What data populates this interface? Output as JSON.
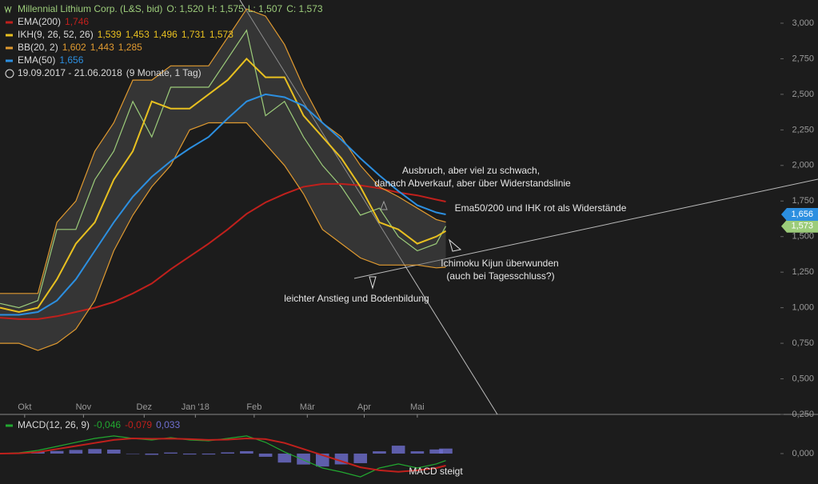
{
  "chart_data": [
    {
      "type": "line",
      "title": "Millennial Lithium Corp. (L&S, bid)",
      "ohlc": [
        "O: 1,520",
        "H: 1,575",
        "L: 1,507",
        "C: 1,573"
      ],
      "date_range": "19.09.2017 - 21.06.2018",
      "period": "(9 Monate, 1 Tag)",
      "x": [
        0,
        10,
        20,
        30,
        40,
        50,
        60,
        70,
        80,
        90,
        100,
        110,
        120,
        130,
        140,
        150,
        160,
        170,
        180,
        190,
        200,
        210,
        220,
        230,
        235
      ],
      "xlim": [
        0,
        411
      ],
      "xticks": [
        {
          "value": 13,
          "label": "Okt"
        },
        {
          "value": 44,
          "label": "Nov"
        },
        {
          "value": 76,
          "label": "Dez"
        },
        {
          "value": 103,
          "label": "Jan '18"
        },
        {
          "value": 134,
          "label": "Feb"
        },
        {
          "value": 162,
          "label": "Mär"
        },
        {
          "value": 192,
          "label": "Apr"
        },
        {
          "value": 220,
          "label": "Mai"
        }
      ],
      "ylim": [
        0.25,
        3.163
      ],
      "yticks": [
        {
          "value": 3,
          "label": "3,000"
        },
        {
          "value": 2.75,
          "label": "2,750"
        },
        {
          "value": 2.5,
          "label": "2,500"
        },
        {
          "value": 2.25,
          "label": "2,250"
        },
        {
          "value": 2,
          "label": "2,000"
        },
        {
          "value": 1.75,
          "label": "1,750"
        },
        {
          "value": 1.5,
          "label": "1,500"
        },
        {
          "value": 1.25,
          "label": "1,250"
        },
        {
          "value": 1,
          "label": "1,000"
        },
        {
          "value": 0.75,
          "label": "0,750"
        },
        {
          "value": 0.5,
          "label": "0,500"
        },
        {
          "value": 0.25,
          "label": "0,250"
        }
      ],
      "series": [
        {
          "color": "#9ccc7a",
          "last_label": "1,573",
          "values": [
            1.03,
            1.0,
            1.05,
            1.55,
            1.55,
            1.9,
            2.1,
            2.45,
            2.2,
            2.55,
            2.55,
            2.55,
            2.75,
            2.95,
            2.35,
            2.45,
            2.2,
            2.0,
            1.85,
            1.65,
            1.7,
            1.5,
            1.4,
            1.45,
            1.573
          ]
        },
        {
          "name": "EMA(200)",
          "color": "#c0201c",
          "readout": [
            "1,746"
          ],
          "values": [
            0.93,
            0.92,
            0.92,
            0.94,
            0.97,
            1.0,
            1.04,
            1.1,
            1.17,
            1.27,
            1.36,
            1.45,
            1.55,
            1.66,
            1.74,
            1.8,
            1.85,
            1.87,
            1.87,
            1.86,
            1.84,
            1.81,
            1.79,
            1.76,
            1.746
          ]
        },
        {
          "name": "IKH(9, 26, 52, 26)",
          "color": "#e8c020",
          "readout": [
            "1,539",
            "1,453",
            "1,496",
            "1,731",
            "1,573"
          ],
          "values": [
            1.0,
            0.97,
            1.0,
            1.2,
            1.45,
            1.6,
            1.9,
            2.1,
            2.45,
            2.4,
            2.4,
            2.5,
            2.6,
            2.75,
            2.62,
            2.62,
            2.35,
            2.2,
            2.05,
            1.85,
            1.6,
            1.55,
            1.45,
            1.5,
            1.539
          ]
        },
        {
          "name": "BB(20, 2)",
          "color": "#e09a30",
          "style": "band",
          "readout": [
            "1,602",
            "1,443",
            "1,285"
          ],
          "upper": [
            1.1,
            1.1,
            1.1,
            1.6,
            1.75,
            2.1,
            2.3,
            2.6,
            2.6,
            2.7,
            2.7,
            2.7,
            2.9,
            3.1,
            3.05,
            2.85,
            2.55,
            2.3,
            2.2,
            2.0,
            1.85,
            1.78,
            1.7,
            1.62,
            1.602
          ],
          "lower": [
            0.75,
            0.75,
            0.7,
            0.75,
            0.85,
            1.05,
            1.4,
            1.65,
            1.85,
            2.0,
            2.25,
            2.3,
            2.3,
            2.3,
            2.15,
            2.0,
            1.8,
            1.55,
            1.45,
            1.35,
            1.3,
            1.3,
            1.3,
            1.28,
            1.285
          ]
        },
        {
          "name": "EMA(50)",
          "color": "#2c8fe0",
          "readout": [
            "1,656"
          ],
          "last_label": "1,656",
          "values": [
            0.95,
            0.95,
            0.97,
            1.05,
            1.2,
            1.4,
            1.6,
            1.78,
            1.92,
            2.03,
            2.12,
            2.2,
            2.33,
            2.45,
            2.5,
            2.48,
            2.42,
            2.3,
            2.18,
            2.05,
            1.93,
            1.82,
            1.72,
            1.67,
            1.656
          ]
        }
      ],
      "annotations": [
        "Ausbruch, aber viel zu schwach,",
        "danach Abverkauf, aber über Widerstandslinie",
        "Ema50/200 und IHK rot als Widerstände",
        "Ichimoku Kijun überwunden",
        "(auch bei Tagesschluss?)",
        "leichter Anstieg und Bodenbildung"
      ]
    },
    {
      "type": "line",
      "title": "MACD(12, 26, 9)",
      "readout": [
        "-0,046",
        "-0,079",
        "0,033"
      ],
      "x": [
        0,
        10,
        20,
        30,
        40,
        50,
        60,
        70,
        80,
        90,
        100,
        110,
        120,
        130,
        140,
        150,
        160,
        170,
        180,
        190,
        200,
        210,
        220,
        230,
        235
      ],
      "xlim": [
        0,
        411
      ],
      "ylim": [
        -0.2,
        0.247
      ],
      "yticks": [
        {
          "value": 0,
          "label": "0,000"
        }
      ],
      "series": [
        {
          "color": "#22a830",
          "values": [
            0,
            0.005,
            0.021,
            0.047,
            0.074,
            0.1,
            0.116,
            0.1,
            0.089,
            0.105,
            0.089,
            0.084,
            0.1,
            0.116,
            0.074,
            0.011,
            -0.042,
            -0.095,
            -0.121,
            -0.153,
            -0.095,
            -0.068,
            -0.095,
            -0.068,
            -0.046
          ]
        },
        {
          "color": "#c0201c",
          "values": [
            0,
            0.002,
            0.01,
            0.03,
            0.05,
            0.07,
            0.09,
            0.1,
            0.097,
            0.098,
            0.095,
            0.09,
            0.092,
            0.1,
            0.095,
            0.07,
            0.03,
            -0.01,
            -0.05,
            -0.09,
            -0.11,
            -0.12,
            -0.11,
            -0.095,
            -0.079
          ]
        },
        {
          "color": "#6f6fd0",
          "style": "bars",
          "values": [
            0,
            0.003,
            0.011,
            0.017,
            0.024,
            0.03,
            0.026,
            0,
            -0.008,
            0.007,
            -0.006,
            -0.006,
            0.008,
            0.016,
            -0.021,
            -0.059,
            -0.072,
            -0.085,
            -0.071,
            -0.063,
            0.015,
            0.052,
            0.015,
            0.027,
            0.033
          ]
        }
      ],
      "annotations": [
        "MACD steigt"
      ]
    }
  ]
}
